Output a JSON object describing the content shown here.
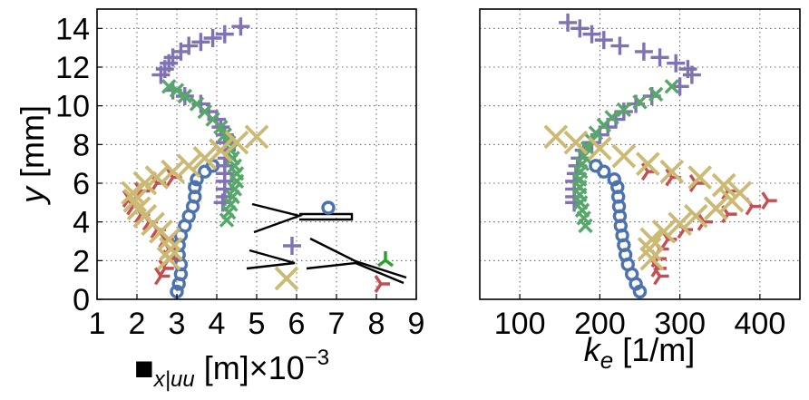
{
  "chart_data": [
    {
      "type": "scatter",
      "panel": "left",
      "xlabel_parts": {
        "symbol": "■",
        "sub": "x|uu",
        "unit": " [m]×10",
        "exp": "−3"
      },
      "ylabel_parts": {
        "var": "y",
        "unit": " [mm]"
      },
      "xlim": [
        1,
        9
      ],
      "ylim": [
        0,
        15
      ],
      "xticks": [
        "1",
        "2",
        "3",
        "4",
        "5",
        "6",
        "7",
        "8",
        "9"
      ],
      "yticks": [
        "0",
        "2",
        "4",
        "6",
        "8",
        "10",
        "12",
        "14"
      ],
      "grid": true,
      "series": [
        {
          "marker": "o",
          "color": "#4c72b0",
          "points": [
            [
              3.0,
              0.4
            ],
            [
              3.05,
              0.8
            ],
            [
              3.1,
              1.3
            ],
            [
              3.1,
              1.8
            ],
            [
              3.05,
              2.3
            ],
            [
              3.05,
              2.8
            ],
            [
              3.1,
              3.3
            ],
            [
              3.2,
              3.8
            ],
            [
              3.3,
              4.3
            ],
            [
              3.4,
              4.8
            ],
            [
              3.45,
              5.3
            ],
            [
              3.45,
              5.8
            ],
            [
              3.5,
              6.2
            ],
            [
              3.7,
              6.6
            ],
            [
              3.9,
              6.9
            ]
          ]
        },
        {
          "marker": "+",
          "color": "#8172b2",
          "points": [
            [
              2.6,
              11.6
            ],
            [
              2.7,
              11.9
            ],
            [
              2.8,
              12.2
            ],
            [
              2.9,
              12.5
            ],
            [
              3.1,
              12.8
            ],
            [
              3.3,
              13.1
            ],
            [
              3.6,
              13.3
            ],
            [
              3.9,
              13.5
            ],
            [
              4.2,
              13.7
            ],
            [
              4.6,
              14.1
            ],
            [
              2.9,
              10.8
            ],
            [
              3.2,
              10.5
            ],
            [
              3.6,
              10.1
            ],
            [
              3.8,
              9.7
            ],
            [
              4.0,
              9.3
            ],
            [
              4.1,
              8.9
            ],
            [
              4.2,
              8.5
            ],
            [
              4.2,
              8.1
            ],
            [
              4.25,
              7.7
            ],
            [
              4.25,
              7.3
            ],
            [
              4.2,
              6.9
            ],
            [
              4.2,
              6.5
            ],
            [
              4.2,
              6.1
            ],
            [
              4.2,
              5.7
            ],
            [
              4.2,
              5.3
            ],
            [
              4.15,
              5.0
            ]
          ]
        },
        {
          "marker": "x",
          "color": "#55a868",
          "points": [
            [
              2.8,
              11.0
            ],
            [
              3.0,
              10.8
            ],
            [
              3.2,
              10.5
            ],
            [
              3.5,
              10.1
            ],
            [
              3.7,
              9.7
            ],
            [
              3.9,
              9.3
            ],
            [
              4.1,
              8.9
            ],
            [
              4.2,
              8.5
            ],
            [
              4.3,
              8.1
            ],
            [
              4.35,
              7.7
            ],
            [
              4.4,
              7.3
            ],
            [
              4.45,
              6.9
            ],
            [
              4.5,
              6.5
            ],
            [
              4.5,
              6.1
            ],
            [
              4.45,
              5.7
            ],
            [
              4.4,
              5.3
            ],
            [
              4.35,
              4.9
            ],
            [
              4.3,
              4.5
            ],
            [
              4.25,
              4.1
            ]
          ]
        },
        {
          "marker": "tri",
          "color": "#c44e52",
          "points": [
            [
              1.8,
              5.2
            ],
            [
              1.9,
              4.8
            ],
            [
              2.1,
              4.4
            ],
            [
              2.3,
              4.0
            ],
            [
              2.5,
              3.6
            ],
            [
              2.7,
              3.1
            ],
            [
              2.8,
              2.6
            ],
            [
              2.8,
              2.1
            ],
            [
              2.7,
              1.6
            ],
            [
              2.6,
              1.2
            ],
            [
              2.1,
              5.6
            ],
            [
              2.5,
              6.0
            ],
            [
              2.9,
              6.3
            ]
          ]
        },
        {
          "marker": "X",
          "color": "#ccb974",
          "points": [
            [
              1.9,
              5.5
            ],
            [
              1.95,
              5.1
            ],
            [
              2.05,
              4.7
            ],
            [
              2.2,
              4.3
            ],
            [
              2.4,
              3.9
            ],
            [
              2.6,
              3.5
            ],
            [
              2.8,
              3.1
            ],
            [
              2.85,
              2.6
            ],
            [
              2.8,
              2.1
            ],
            [
              2.2,
              6.0
            ],
            [
              2.5,
              6.3
            ],
            [
              2.9,
              6.6
            ],
            [
              3.3,
              6.9
            ],
            [
              3.7,
              7.3
            ],
            [
              4.1,
              7.7
            ],
            [
              4.5,
              8.1
            ],
            [
              5.0,
              8.4
            ]
          ]
        }
      ]
    },
    {
      "type": "scatter",
      "panel": "right",
      "xlabel_parts": {
        "var": "k",
        "sub": "e",
        "unit": " [1/m]"
      },
      "xlim": [
        50,
        450
      ],
      "ylim": [
        0,
        15
      ],
      "xticks": [
        "100",
        "200",
        "300",
        "400"
      ],
      "xtick_values": [
        100,
        200,
        300,
        400
      ],
      "grid": true,
      "series": [
        {
          "marker": "o",
          "color": "#4c72b0",
          "points": [
            [
              250,
              0.4
            ],
            [
              245,
              0.8
            ],
            [
              240,
              1.3
            ],
            [
              235,
              1.8
            ],
            [
              232,
              2.3
            ],
            [
              230,
              2.8
            ],
            [
              228,
              3.3
            ],
            [
              226,
              3.8
            ],
            [
              225,
              4.3
            ],
            [
              224,
              4.8
            ],
            [
              223,
              5.3
            ],
            [
              222,
              5.8
            ],
            [
              218,
              6.2
            ],
            [
              205,
              6.6
            ],
            [
              195,
              6.9
            ]
          ]
        },
        {
          "marker": "+",
          "color": "#8172b2",
          "points": [
            [
              160,
              14.3
            ],
            [
              175,
              14.0
            ],
            [
              190,
              13.7
            ],
            [
              205,
              13.4
            ],
            [
              225,
              13.1
            ],
            [
              255,
              12.8
            ],
            [
              275,
              12.5
            ],
            [
              295,
              12.2
            ],
            [
              310,
              11.9
            ],
            [
              315,
              11.6
            ],
            [
              300,
              11.0
            ],
            [
              265,
              10.5
            ],
            [
              245,
              10.1
            ],
            [
              230,
              9.7
            ],
            [
              220,
              9.3
            ],
            [
              210,
              8.9
            ],
            [
              200,
              8.5
            ],
            [
              190,
              8.1
            ],
            [
              180,
              7.7
            ],
            [
              175,
              7.3
            ],
            [
              172,
              6.9
            ],
            [
              170,
              6.5
            ],
            [
              168,
              6.1
            ],
            [
              168,
              5.7
            ],
            [
              168,
              5.3
            ],
            [
              168,
              5.0
            ]
          ]
        },
        {
          "marker": "x",
          "color": "#55a868",
          "points": [
            [
              290,
              11.0
            ],
            [
              270,
              10.6
            ],
            [
              250,
              10.2
            ],
            [
              230,
              9.8
            ],
            [
              215,
              9.4
            ],
            [
              205,
              9.0
            ],
            [
              195,
              8.6
            ],
            [
              190,
              8.2
            ],
            [
              185,
              7.8
            ],
            [
              180,
              7.4
            ],
            [
              178,
              7.0
            ],
            [
              176,
              6.6
            ],
            [
              175,
              6.2
            ],
            [
              175,
              5.8
            ],
            [
              175,
              5.4
            ],
            [
              176,
              5.0
            ],
            [
              178,
              4.6
            ],
            [
              180,
              4.2
            ],
            [
              182,
              3.8
            ]
          ]
        },
        {
          "marker": "tri",
          "color": "#c44e52",
          "points": [
            [
              275,
              1.2
            ],
            [
              272,
              1.6
            ],
            [
              272,
              2.1
            ],
            [
              275,
              2.6
            ],
            [
              285,
              3.1
            ],
            [
              305,
              3.6
            ],
            [
              330,
              4.0
            ],
            [
              360,
              4.4
            ],
            [
              390,
              4.8
            ],
            [
              410,
              5.1
            ],
            [
              360,
              5.6
            ],
            [
              320,
              6.0
            ],
            [
              290,
              6.3
            ],
            [
              260,
              6.6
            ]
          ]
        },
        {
          "marker": "X",
          "color": "#ccb974",
          "points": [
            [
              265,
              2.1
            ],
            [
              262,
              2.6
            ],
            [
              265,
              3.1
            ],
            [
              280,
              3.5
            ],
            [
              300,
              3.9
            ],
            [
              320,
              4.3
            ],
            [
              345,
              4.7
            ],
            [
              365,
              5.1
            ],
            [
              375,
              5.5
            ],
            [
              355,
              5.9
            ],
            [
              325,
              6.3
            ],
            [
              290,
              6.6
            ],
            [
              260,
              7.0
            ],
            [
              230,
              7.4
            ],
            [
              200,
              7.8
            ],
            [
              170,
              8.1
            ],
            [
              145,
              8.4
            ]
          ]
        }
      ]
    }
  ],
  "inset": {
    "legend_glyphs": [
      {
        "marker": "o",
        "color": "#4c72b0"
      },
      {
        "marker": "+",
        "color": "#8172b2"
      },
      {
        "marker": "X",
        "color": "#ccb974"
      },
      {
        "marker": "Y",
        "color": "#2ca02c"
      },
      {
        "marker": "tri",
        "color": "#c44e52"
      }
    ]
  }
}
